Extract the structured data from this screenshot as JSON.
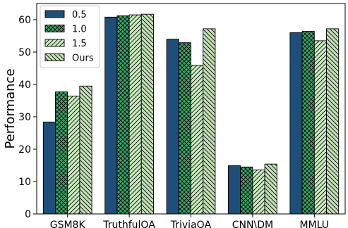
{
  "chart_data": {
    "type": "bar",
    "title": "",
    "xlabel": "",
    "ylabel": "Performance",
    "ylim": [
      0,
      65
    ],
    "yticks": [
      0,
      10,
      20,
      30,
      40,
      50,
      60
    ],
    "grid": false,
    "legend_position": "top-left",
    "categories": [
      "GSM8K",
      "TruthfulQA",
      "TriviaQA",
      "CNN\\DM",
      "MMLU"
    ],
    "series": [
      {
        "name": "0.5",
        "color": "#1f4e79",
        "pattern": "solid",
        "values": [
          28.4,
          60.8,
          54.0,
          14.9,
          56.0
        ]
      },
      {
        "name": "1.0",
        "color": "#3fa36b",
        "pattern": "crosshatch",
        "values": [
          37.7,
          61.2,
          52.9,
          14.5,
          56.4
        ]
      },
      {
        "name": "1.5",
        "color": "#c9ecbf",
        "pattern": "forward-diagonal",
        "values": [
          36.4,
          61.5,
          45.9,
          13.6,
          53.5
        ]
      },
      {
        "name": "Ours",
        "color": "#c3dfb6",
        "pattern": "back-diagonal",
        "values": [
          39.5,
          61.7,
          57.2,
          15.4,
          57.2
        ]
      }
    ]
  }
}
